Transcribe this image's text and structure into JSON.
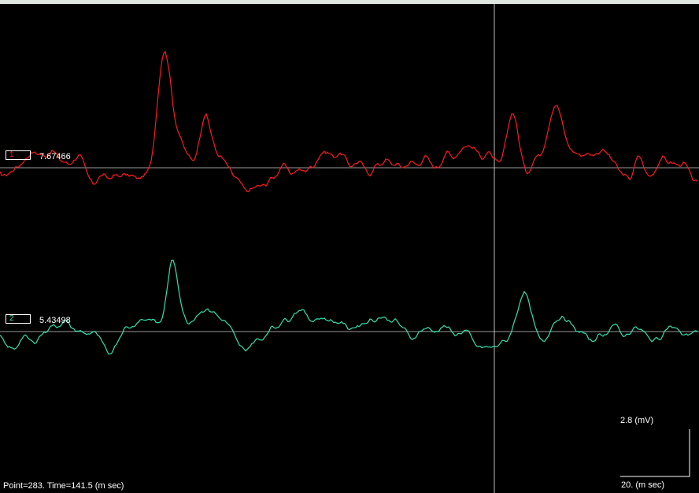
{
  "channels": [
    {
      "id": "1",
      "value": "7.67466",
      "color": "#ff1a1a"
    },
    {
      "id": "2",
      "value": "5.43498",
      "color": "#33e0b0"
    }
  ],
  "status": {
    "readout": "Point=283.  Time=141.5 (m sec)"
  },
  "scale_bar": {
    "voltage_label": "2.8 (mV)",
    "time_label": "20. (m sec)"
  },
  "colors": {
    "background": "#000000",
    "baseline": "#9a9a9a",
    "cursor": "#bfbfbf",
    "top_bar": "#dfe6e1"
  }
}
